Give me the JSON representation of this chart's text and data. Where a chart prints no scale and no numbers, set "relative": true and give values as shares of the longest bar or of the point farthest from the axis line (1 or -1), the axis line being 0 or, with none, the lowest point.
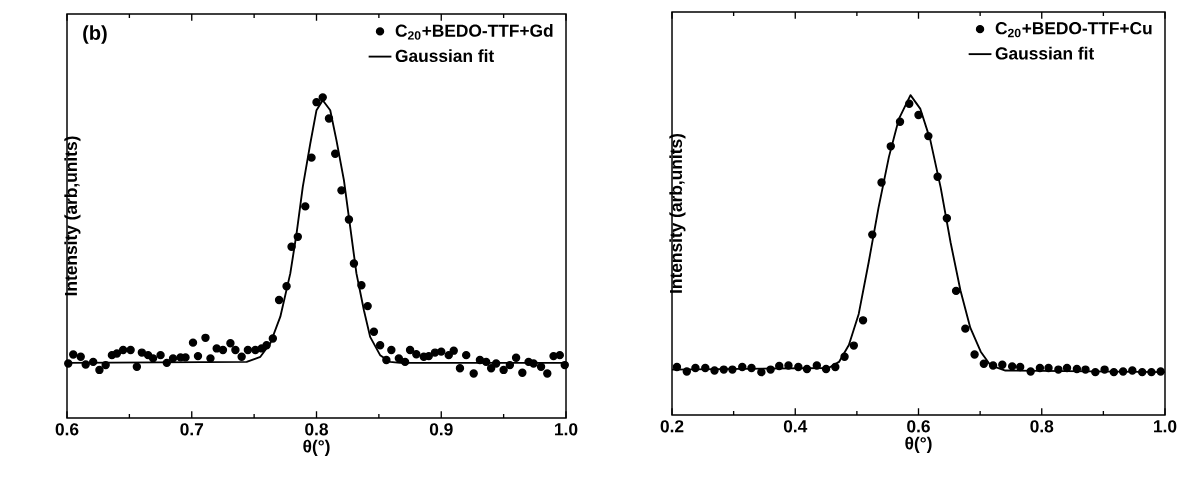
{
  "chart_data": [
    {
      "type": "scatter",
      "relative": true,
      "xlabel": "θ(°)",
      "ylabel": "Intensity (arb,units)",
      "annotations": [
        "(b)"
      ],
      "xlim": [
        0.6,
        1.0
      ],
      "xticks": [
        0.6,
        0.7,
        0.8,
        0.9,
        {
          "value": 1.0,
          "label": "1.0"
        }
      ],
      "legend": "top right",
      "series": [
        {
          "name": "C$_{20}$+BEDO-TTF+Gd",
          "marker": "circle",
          "color": "#000000",
          "x": [
            0.601,
            0.605,
            0.611,
            0.615,
            0.621,
            0.626,
            0.631,
            0.636,
            0.64,
            0.645,
            0.651,
            0.656,
            0.66,
            0.665,
            0.669,
            0.675,
            0.68,
            0.685,
            0.691,
            0.695,
            0.701,
            0.705,
            0.711,
            0.715,
            0.72,
            0.725,
            0.731,
            0.735,
            0.74,
            0.745,
            0.751,
            0.756,
            0.76,
            0.765,
            0.77,
            0.776,
            0.78,
            0.785,
            0.791,
            0.796,
            0.8,
            0.805,
            0.81,
            0.815,
            0.82,
            0.826,
            0.83,
            0.836,
            0.841,
            0.846,
            0.851,
            0.856,
            0.86,
            0.866,
            0.871,
            0.875,
            0.88,
            0.886,
            0.89,
            0.895,
            0.9,
            0.906,
            0.91,
            0.915,
            0.92,
            0.926,
            0.931,
            0.936,
            0.94,
            0.944,
            0.95,
            0.955,
            0.96,
            0.965,
            0.97,
            0.974,
            0.98,
            0.985,
            0.99,
            0.995,
            0.999
          ],
          "values": [
            0.17,
            0.198,
            0.191,
            0.167,
            0.175,
            0.15,
            0.165,
            0.196,
            0.201,
            0.212,
            0.212,
            0.16,
            0.204,
            0.196,
            0.186,
            0.196,
            0.172,
            0.186,
            0.189,
            0.189,
            0.235,
            0.193,
            0.25,
            0.186,
            0.217,
            0.212,
            0.233,
            0.212,
            0.191,
            0.212,
            0.212,
            0.217,
            0.227,
            0.248,
            0.368,
            0.411,
            0.534,
            0.565,
            0.66,
            0.812,
            0.985,
            1.0,
            0.934,
            0.824,
            0.71,
            0.619,
            0.482,
            0.414,
            0.349,
            0.269,
            0.227,
            0.181,
            0.212,
            0.186,
            0.175,
            0.212,
            0.199,
            0.191,
            0.193,
            0.204,
            0.207,
            0.196,
            0.21,
            0.155,
            0.196,
            0.139,
            0.181,
            0.175,
            0.155,
            0.17,
            0.15,
            0.165,
            0.188,
            0.141,
            0.175,
            0.17,
            0.16,
            0.139,
            0.193,
            0.196,
            0.165
          ]
        },
        {
          "name": "Gaussian fit",
          "type": "line",
          "line_style": "solid",
          "color": "#000000",
          "x": [
            0.6,
            0.744,
            0.755,
            0.763,
            0.771,
            0.779,
            0.784,
            0.789,
            0.795,
            0.8,
            0.805,
            0.811,
            0.816,
            0.822,
            0.827,
            0.832,
            0.838,
            0.843,
            0.851,
            0.859,
            0.867,
            1.0
          ],
          "values": [
            0.172,
            0.175,
            0.191,
            0.233,
            0.316,
            0.451,
            0.575,
            0.721,
            0.856,
            0.96,
            0.991,
            0.96,
            0.866,
            0.741,
            0.596,
            0.451,
            0.336,
            0.253,
            0.196,
            0.175,
            0.172,
            0.172
          ]
        }
      ]
    },
    {
      "type": "scatter",
      "relative": true,
      "xlabel": "θ(°)",
      "ylabel": "Intensity (arb,units)",
      "xlim": [
        0.2,
        1.0
      ],
      "xticks": [
        0.2,
        0.4,
        0.6,
        0.8,
        {
          "value": 1.0,
          "label": "1.0"
        }
      ],
      "legend": "top right",
      "series": [
        {
          "name": "C$_{20}$+BEDO-TTF+Cu",
          "marker": "circle",
          "color": "#000000",
          "x": [
            0.208,
            0.224,
            0.238,
            0.254,
            0.269,
            0.284,
            0.298,
            0.314,
            0.329,
            0.345,
            0.36,
            0.374,
            0.389,
            0.405,
            0.419,
            0.435,
            0.45,
            0.465,
            0.48,
            0.495,
            0.51,
            0.525,
            0.54,
            0.555,
            0.57,
            0.585,
            0.6,
            0.616,
            0.631,
            0.646,
            0.661,
            0.676,
            0.691,
            0.706,
            0.721,
            0.736,
            0.752,
            0.765,
            0.782,
            0.797,
            0.811,
            0.827,
            0.841,
            0.857,
            0.871,
            0.887,
            0.902,
            0.917,
            0.932,
            0.947,
            0.963,
            0.978,
            0.993
          ],
          "values": [
            0.15,
            0.136,
            0.147,
            0.147,
            0.139,
            0.142,
            0.142,
            0.15,
            0.147,
            0.134,
            0.142,
            0.153,
            0.155,
            0.15,
            0.144,
            0.155,
            0.144,
            0.15,
            0.182,
            0.217,
            0.296,
            0.564,
            0.727,
            0.84,
            0.917,
            0.973,
            0.938,
            0.872,
            0.745,
            0.615,
            0.388,
            0.27,
            0.189,
            0.16,
            0.155,
            0.157,
            0.152,
            0.15,
            0.136,
            0.147,
            0.147,
            0.142,
            0.147,
            0.144,
            0.142,
            0.134,
            0.142,
            0.134,
            0.136,
            0.139,
            0.134,
            0.134,
            0.136
          ]
        },
        {
          "name": "Gaussian fit",
          "type": "line",
          "line_style": "solid",
          "color": "#000000",
          "x": [
            0.2,
            0.454,
            0.471,
            0.487,
            0.503,
            0.519,
            0.535,
            0.552,
            0.568,
            0.587,
            0.603,
            0.619,
            0.636,
            0.652,
            0.668,
            0.684,
            0.701,
            0.717,
            0.741,
            1.0
          ],
          "values": [
            0.142,
            0.147,
            0.166,
            0.219,
            0.316,
            0.476,
            0.647,
            0.807,
            0.925,
            1.0,
            0.957,
            0.861,
            0.711,
            0.54,
            0.39,
            0.273,
            0.198,
            0.155,
            0.139,
            0.134
          ]
        }
      ]
    }
  ]
}
